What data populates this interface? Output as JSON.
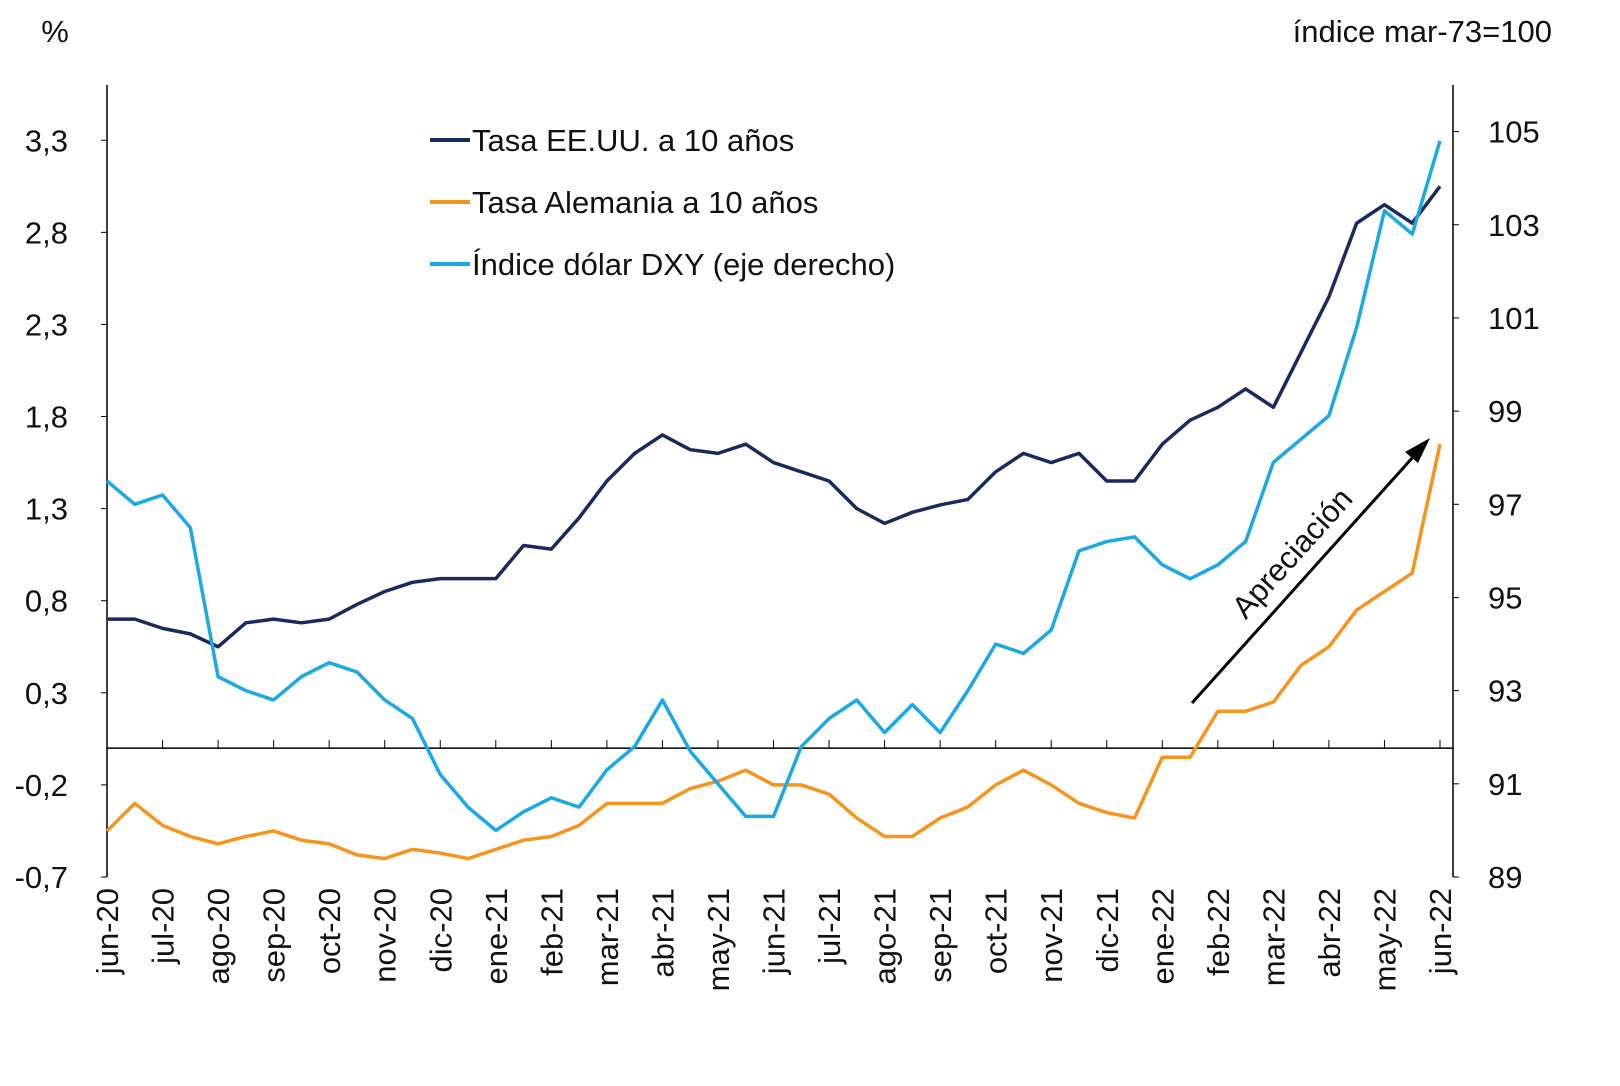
{
  "chart_data": {
    "type": "line",
    "y_label": "%",
    "y2_label": "índice mar-73=100",
    "annotation": "Apreciación",
    "categories": [
      "jun-20",
      null,
      "jul-20",
      null,
      "ago-20",
      null,
      "sep-20",
      null,
      "oct-20",
      null,
      "nov-20",
      null,
      "dic-20",
      null,
      "ene-21",
      null,
      "feb-21",
      null,
      "mar-21",
      null,
      "abr-21",
      null,
      "may-21",
      null,
      "jun-21",
      null,
      "jul-21",
      null,
      "ago-21",
      null,
      "sep-21",
      null,
      "oct-21",
      null,
      "nov-21",
      null,
      "dic-21",
      null,
      "ene-22",
      null,
      "feb-22",
      null,
      "mar-22",
      null,
      "abr-22",
      null,
      "may-22",
      null,
      "jun-22"
    ],
    "series": [
      {
        "name": "Tasa EE.UU. a 10 años",
        "color": "#1b2a5e",
        "axis": "y",
        "values": [
          0.7,
          0.7,
          0.65,
          0.62,
          0.55,
          0.68,
          0.7,
          0.68,
          0.7,
          0.78,
          0.85,
          0.9,
          0.92,
          0.92,
          0.92,
          1.1,
          1.08,
          1.25,
          1.45,
          1.6,
          1.7,
          1.62,
          1.6,
          1.65,
          1.55,
          1.5,
          1.45,
          1.3,
          1.22,
          1.28,
          1.32,
          1.35,
          1.5,
          1.6,
          1.55,
          1.6,
          1.45,
          1.45,
          1.65,
          1.78,
          1.85,
          1.95,
          1.85,
          2.15,
          2.45,
          2.85,
          2.95,
          2.85,
          3.05
        ]
      },
      {
        "name": "Tasa Alemania a 10 años",
        "color": "#f7941d",
        "axis": "y",
        "values": [
          -0.45,
          -0.3,
          -0.42,
          -0.48,
          -0.52,
          -0.48,
          -0.45,
          -0.5,
          -0.52,
          -0.58,
          -0.6,
          -0.55,
          -0.57,
          -0.6,
          -0.55,
          -0.5,
          -0.48,
          -0.42,
          -0.3,
          -0.3,
          -0.3,
          -0.22,
          -0.18,
          -0.12,
          -0.2,
          -0.2,
          -0.25,
          -0.38,
          -0.48,
          -0.48,
          -0.38,
          -0.32,
          -0.2,
          -0.12,
          -0.2,
          -0.3,
          -0.35,
          -0.38,
          -0.05,
          -0.05,
          0.2,
          0.2,
          0.25,
          0.45,
          0.55,
          0.75,
          0.85,
          0.95,
          1.65
        ]
      },
      {
        "name": "Índice dólar DXY (eje derecho)",
        "color": "#1ba9e6",
        "axis": "y2",
        "values": [
          97.5,
          97.0,
          97.2,
          96.5,
          93.3,
          93.0,
          92.8,
          93.3,
          93.6,
          93.4,
          92.8,
          92.4,
          91.2,
          90.5,
          90.0,
          90.4,
          90.7,
          90.5,
          91.3,
          91.8,
          92.8,
          91.7,
          91.0,
          90.3,
          90.3,
          91.8,
          92.4,
          92.8,
          92.1,
          92.7,
          92.1,
          93.0,
          94.0,
          93.8,
          94.3,
          96.0,
          96.2,
          96.3,
          95.7,
          95.4,
          95.7,
          96.2,
          97.9,
          98.4,
          98.9,
          100.8,
          103.3,
          102.8,
          104.8
        ]
      }
    ],
    "ylim": [
      -0.7,
      3.6
    ],
    "yticks": [
      {
        "value": -0.7,
        "label": "-0,7"
      },
      {
        "value": -0.2,
        "label": "-0,2"
      },
      {
        "value": 0.3,
        "label": "0,3"
      },
      {
        "value": 0.8,
        "label": "0,8"
      },
      {
        "value": 1.3,
        "label": "1,3"
      },
      {
        "value": 1.8,
        "label": "1,8"
      },
      {
        "value": 2.3,
        "label": "2,3"
      },
      {
        "value": 2.8,
        "label": "2,8"
      },
      {
        "value": 3.3,
        "label": "3,3"
      }
    ],
    "y2lim": [
      89,
      106
    ],
    "y2ticks": [
      89,
      91,
      93,
      95,
      97,
      99,
      101,
      103,
      105
    ],
    "grid": false
  }
}
